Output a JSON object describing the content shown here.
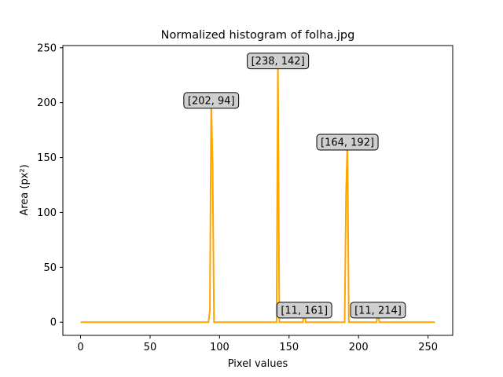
{
  "chart_data": {
    "type": "line",
    "title": "Normalized histogram of folha.jpg",
    "xlabel": "Pixel values",
    "ylabel": "Area (px²)",
    "xlim": [
      -12.75,
      267.75
    ],
    "ylim": [
      -12,
      252
    ],
    "xticks": [
      0,
      50,
      100,
      150,
      200,
      250
    ],
    "yticks": [
      0,
      50,
      100,
      150,
      200,
      250
    ],
    "grid": false,
    "line_color": "#ffa500",
    "series": [
      {
        "x": [
          0,
          92,
          93,
          94,
          95,
          96,
          141,
          142,
          143,
          160,
          161,
          162,
          190,
          191,
          192,
          193,
          194,
          213,
          214,
          215,
          255
        ],
        "y": [
          0,
          0,
          10,
          202,
          143,
          0,
          0,
          238,
          0,
          0,
          11,
          0,
          0,
          116,
          164,
          0,
          0,
          0,
          11,
          0,
          0
        ]
      }
    ],
    "annotations": [
      {
        "text": "[202, 94]",
        "x": 94,
        "y": 202
      },
      {
        "text": "[238, 142]",
        "x": 142,
        "y": 238
      },
      {
        "text": "[164, 192]",
        "x": 192,
        "y": 164
      },
      {
        "text": "[11, 161]",
        "x": 161,
        "y": 11
      },
      {
        "text": "[11, 214]",
        "x": 214,
        "y": 11
      }
    ]
  }
}
